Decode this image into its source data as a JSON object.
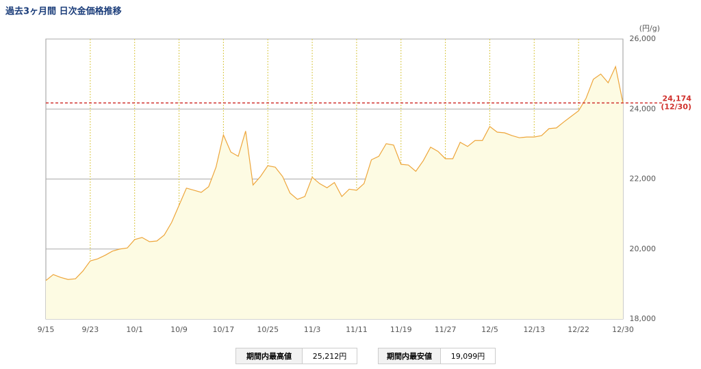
{
  "chart_data": {
    "type": "area",
    "title": "過去3ヶ月間 日次金価格推移",
    "y_unit": "(円/g)",
    "categories": [
      "9/15",
      null,
      null,
      null,
      null,
      null,
      "9/23",
      null,
      null,
      null,
      null,
      null,
      "10/1",
      null,
      null,
      null,
      null,
      null,
      "10/9",
      null,
      null,
      null,
      null,
      null,
      "10/17",
      null,
      null,
      null,
      null,
      null,
      "10/25",
      null,
      null,
      null,
      null,
      null,
      "11/3",
      null,
      null,
      null,
      null,
      null,
      "11/11",
      null,
      null,
      null,
      null,
      null,
      "11/19",
      null,
      null,
      null,
      null,
      null,
      "11/27",
      null,
      null,
      null,
      null,
      null,
      "12/5",
      null,
      null,
      null,
      null,
      null,
      "12/13",
      null,
      null,
      null,
      null,
      null,
      "12/22",
      null,
      null,
      null,
      null,
      null,
      "12/30"
    ],
    "values": [
      19099,
      19270,
      19190,
      19130,
      19150,
      19370,
      19660,
      19720,
      19820,
      19940,
      20000,
      20030,
      20270,
      20330,
      20210,
      20230,
      20400,
      20760,
      21250,
      21740,
      21680,
      21620,
      21780,
      22340,
      23260,
      22770,
      22650,
      23370,
      21830,
      22070,
      22380,
      22340,
      22070,
      21600,
      21420,
      21500,
      22050,
      21870,
      21750,
      21900,
      21500,
      21710,
      21680,
      21870,
      22550,
      22650,
      23010,
      22970,
      22420,
      22400,
      22220,
      22520,
      22910,
      22790,
      22580,
      22580,
      23050,
      22930,
      23100,
      23100,
      23500,
      23340,
      23320,
      23240,
      23180,
      23200,
      23200,
      23240,
      23440,
      23460,
      23630,
      23790,
      23950,
      24300,
      24850,
      25000,
      24750,
      25212,
      24174
    ],
    "color": "#eda53a",
    "fill": "#fdfbe3",
    "ylim": [
      18000,
      26000
    ],
    "yticks": [
      {
        "value": 18000,
        "label": "18,000"
      },
      {
        "value": 20000,
        "label": "20,000"
      },
      {
        "value": 22000,
        "label": "22,000"
      },
      {
        "value": 24000,
        "label": "24,000"
      },
      {
        "value": 26000,
        "label": "26,000"
      }
    ],
    "grid": true,
    "reference": {
      "value": 24174,
      "label": "24,174",
      "date_label": "(12/30)",
      "color": "#d0312d"
    },
    "stats": [
      {
        "label": "期間内最高値",
        "value": "25,212円"
      },
      {
        "label": "期間内最安値",
        "value": "19,099円"
      }
    ]
  }
}
